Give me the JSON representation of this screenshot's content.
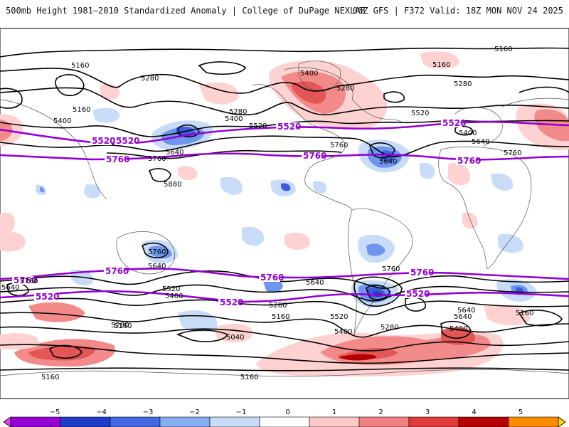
{
  "header": {
    "title": "500mb Height 1981–2010 Standardized Anomaly | College of DuPage NEXLAB",
    "run_info": "06Z GFS | F372 Valid: 18Z MON NOV 24 2025"
  },
  "map": {
    "height_contours": [
      "5160",
      "5280",
      "5400",
      "5520",
      "5640",
      "5760",
      "5880",
      "5040"
    ],
    "highlight_contours": [
      "5520",
      "5760"
    ],
    "labels": {
      "l5160_a": "5160",
      "l5160_b": "5160",
      "l5160_c": "5160",
      "l5160_d": "5160",
      "l5160_e": "5160",
      "l5160_f": "5160",
      "l5160_g": "5160",
      "l5160_h": "5160",
      "l5160_i": "5160",
      "l5280_a": "5280",
      "l5280_b": "5280",
      "l5280_c": "5280",
      "l5280_d": "5280",
      "l5280_e": "5280",
      "l5280_f": "5280",
      "l5280_g": "5280",
      "l5400_a": "5400",
      "l5400_b": "5400",
      "l5400_c": "5400",
      "l5400_d": "5400",
      "l5400_e": "5400",
      "l5400_f": "5400",
      "l5400_g": "5400",
      "l5520_a": "5520",
      "l5520_b": "5520",
      "l5520_c": "5520",
      "l5520_d": "5520",
      "l5640_a": "5640",
      "l5640_b": "5640",
      "l5640_c": "5640",
      "l5640_d": "5640",
      "l5640_e": "5640",
      "l5640_f": "5640",
      "l5640_g": "5640",
      "l5640_h": "5640",
      "l5760_a": "5760",
      "l5760_b": "5760",
      "l5760_c": "5760",
      "l5760_d": "5760",
      "l5760_e": "5760",
      "l5760_f": "5760",
      "l5880": "5880",
      "l5040": "5040",
      "p5520_a": "5520",
      "p5520_b": "5520",
      "p5520_c": "5520",
      "p5520_d": "5520",
      "p5520_e": "5520",
      "p5520_f": "5520",
      "p5520_g": "5520",
      "p5760_a": "5760",
      "p5760_b": "5760",
      "p5760_c": "5760",
      "p5760_d": "5760",
      "p5760_e": "5760",
      "p5760_f": "5760",
      "p5760_g": "5760"
    }
  },
  "colorbar": {
    "ticks": [
      "−5",
      "−4",
      "−3",
      "−2",
      "−1",
      "0",
      "1",
      "2",
      "3",
      "4",
      "5"
    ],
    "colors": [
      "#e040e0",
      "#9400d3",
      "#1e3cc8",
      "#4169e1",
      "#87aef0",
      "#c8dcf8",
      "#ffffff",
      "#ffc8c8",
      "#f08080",
      "#e03c3c",
      "#b40000",
      "#ff8c00",
      "#ffd700"
    ]
  }
}
